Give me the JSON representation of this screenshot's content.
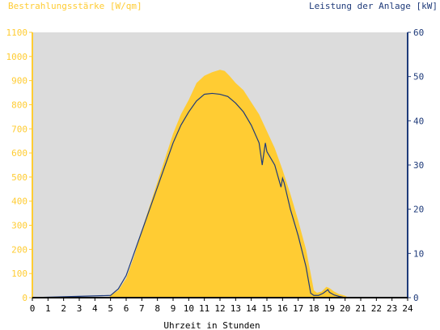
{
  "chart_data": {
    "type": "area",
    "left_title": "Bestrahlungsstärke [W/qm]",
    "right_title": "Leistung der Anlage [kW]",
    "xlabel": "Uhrzeit in Stunden",
    "x_ticks": [
      "0",
      "1",
      "2",
      "3",
      "4",
      "5",
      "6",
      "7",
      "8",
      "9",
      "10",
      "11",
      "12",
      "13",
      "14",
      "15",
      "16",
      "17",
      "18",
      "19",
      "20",
      "21",
      "22",
      "23",
      "24"
    ],
    "xlim": [
      0,
      24
    ],
    "y_left_ticks": [
      "0",
      "100",
      "200",
      "300",
      "400",
      "500",
      "600",
      "700",
      "800",
      "900",
      "1000",
      "1100"
    ],
    "ylim_left": [
      0,
      1100
    ],
    "y_right_ticks": [
      "0",
      "10",
      "20",
      "30",
      "40",
      "50",
      "60"
    ],
    "ylim_right": [
      0,
      60
    ],
    "colors": {
      "plot_bg": "#dcdcdc",
      "irradiance_fill": "#ffcc33",
      "power_line": "#1f3b7a",
      "left_axis_text": "#ffcc33",
      "right_axis_text": "#1f3b7a"
    },
    "series": [
      {
        "name": "Bestrahlungsstärke",
        "axis": "left",
        "style": "area",
        "x": [
          0,
          4.9,
          5.0,
          5.5,
          6.0,
          6.5,
          7.0,
          7.5,
          8.0,
          8.5,
          9.0,
          9.5,
          10.0,
          10.5,
          11.0,
          11.5,
          12.0,
          12.3,
          12.6,
          13.0,
          13.5,
          14.0,
          14.5,
          15.0,
          15.5,
          16.0,
          16.5,
          17.0,
          17.5,
          17.8,
          18.0,
          18.2,
          18.5,
          18.8,
          19.0,
          19.3,
          19.6,
          20.0,
          20.2,
          20.5,
          24
        ],
        "y": [
          0,
          0,
          10,
          30,
          80,
          170,
          280,
          380,
          480,
          580,
          680,
          760,
          820,
          890,
          920,
          935,
          945,
          940,
          920,
          890,
          860,
          810,
          760,
          690,
          620,
          530,
          430,
          320,
          200,
          100,
          30,
          20,
          25,
          45,
          40,
          25,
          15,
          8,
          0,
          0,
          0
        ]
      },
      {
        "name": "Leistung",
        "axis": "right",
        "style": "line",
        "x": [
          0,
          5.0,
          5.5,
          6.0,
          6.5,
          7.0,
          7.5,
          8.0,
          8.5,
          9.0,
          9.5,
          10.0,
          10.5,
          11.0,
          11.5,
          12.0,
          12.5,
          13.0,
          13.5,
          14.0,
          14.5,
          14.7,
          14.9,
          15.0,
          15.5,
          15.9,
          16.0,
          16.1,
          16.5,
          17.0,
          17.5,
          17.7,
          17.8,
          18.0,
          18.3,
          18.6,
          18.9,
          19.0,
          19.3,
          19.6,
          20.0,
          24
        ],
        "y": [
          0,
          0.5,
          2,
          5,
          10,
          15,
          20,
          25,
          30,
          35,
          39,
          42,
          44.5,
          46,
          46.2,
          46,
          45.5,
          44,
          42,
          39,
          35,
          30,
          35,
          33,
          30,
          25,
          27,
          26,
          20,
          14,
          7,
          3,
          1,
          0.5,
          0.5,
          1,
          1.8,
          1.2,
          0.6,
          0.3,
          0,
          0
        ]
      }
    ]
  }
}
